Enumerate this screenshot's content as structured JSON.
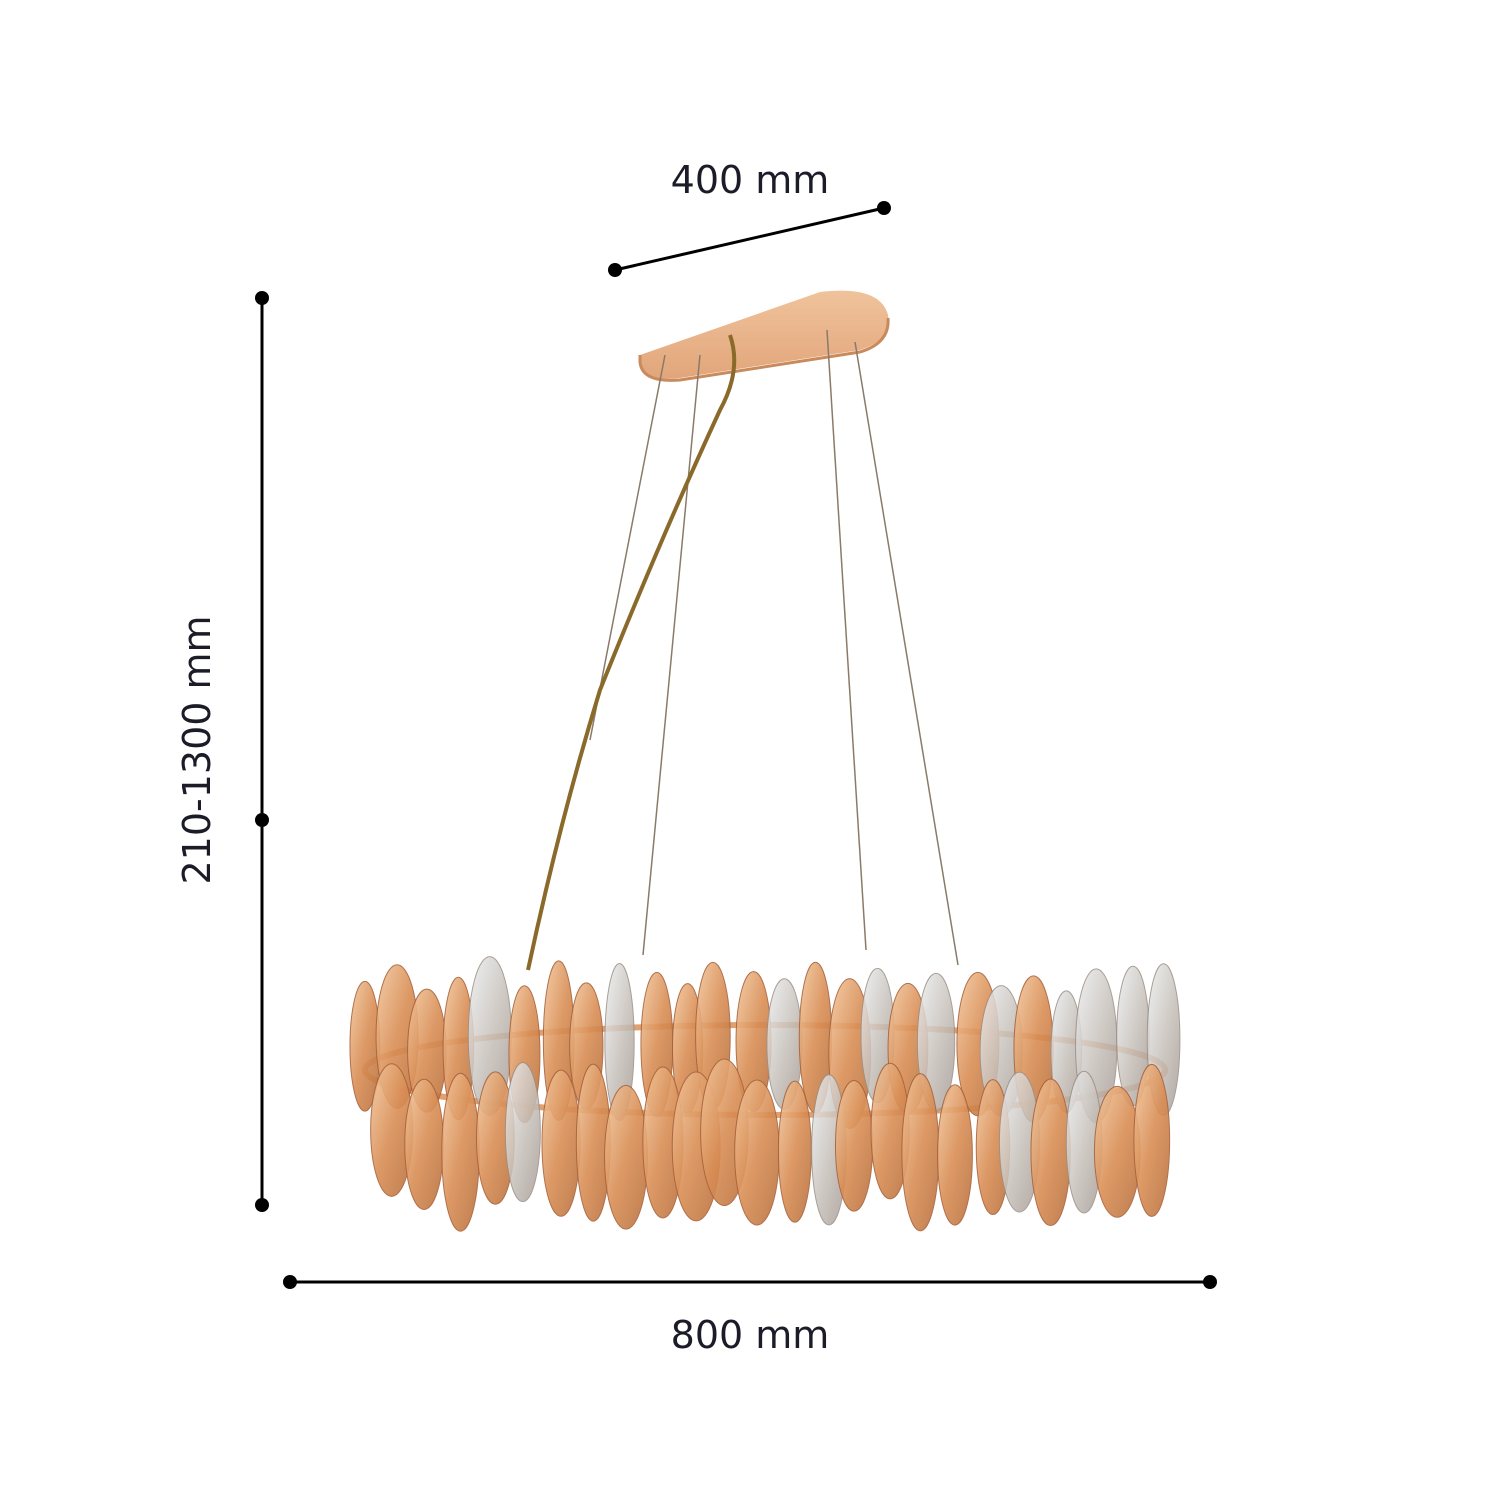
{
  "dimensions": {
    "plate_length": "400 mm",
    "height_range": "210-1300 mm",
    "diameter": "800 mm"
  },
  "colors": {
    "dimension_line": "#000000",
    "label_text": "#1c1c28",
    "gold": "#e8b48a",
    "amber_crystal": "#d9935a"
  }
}
